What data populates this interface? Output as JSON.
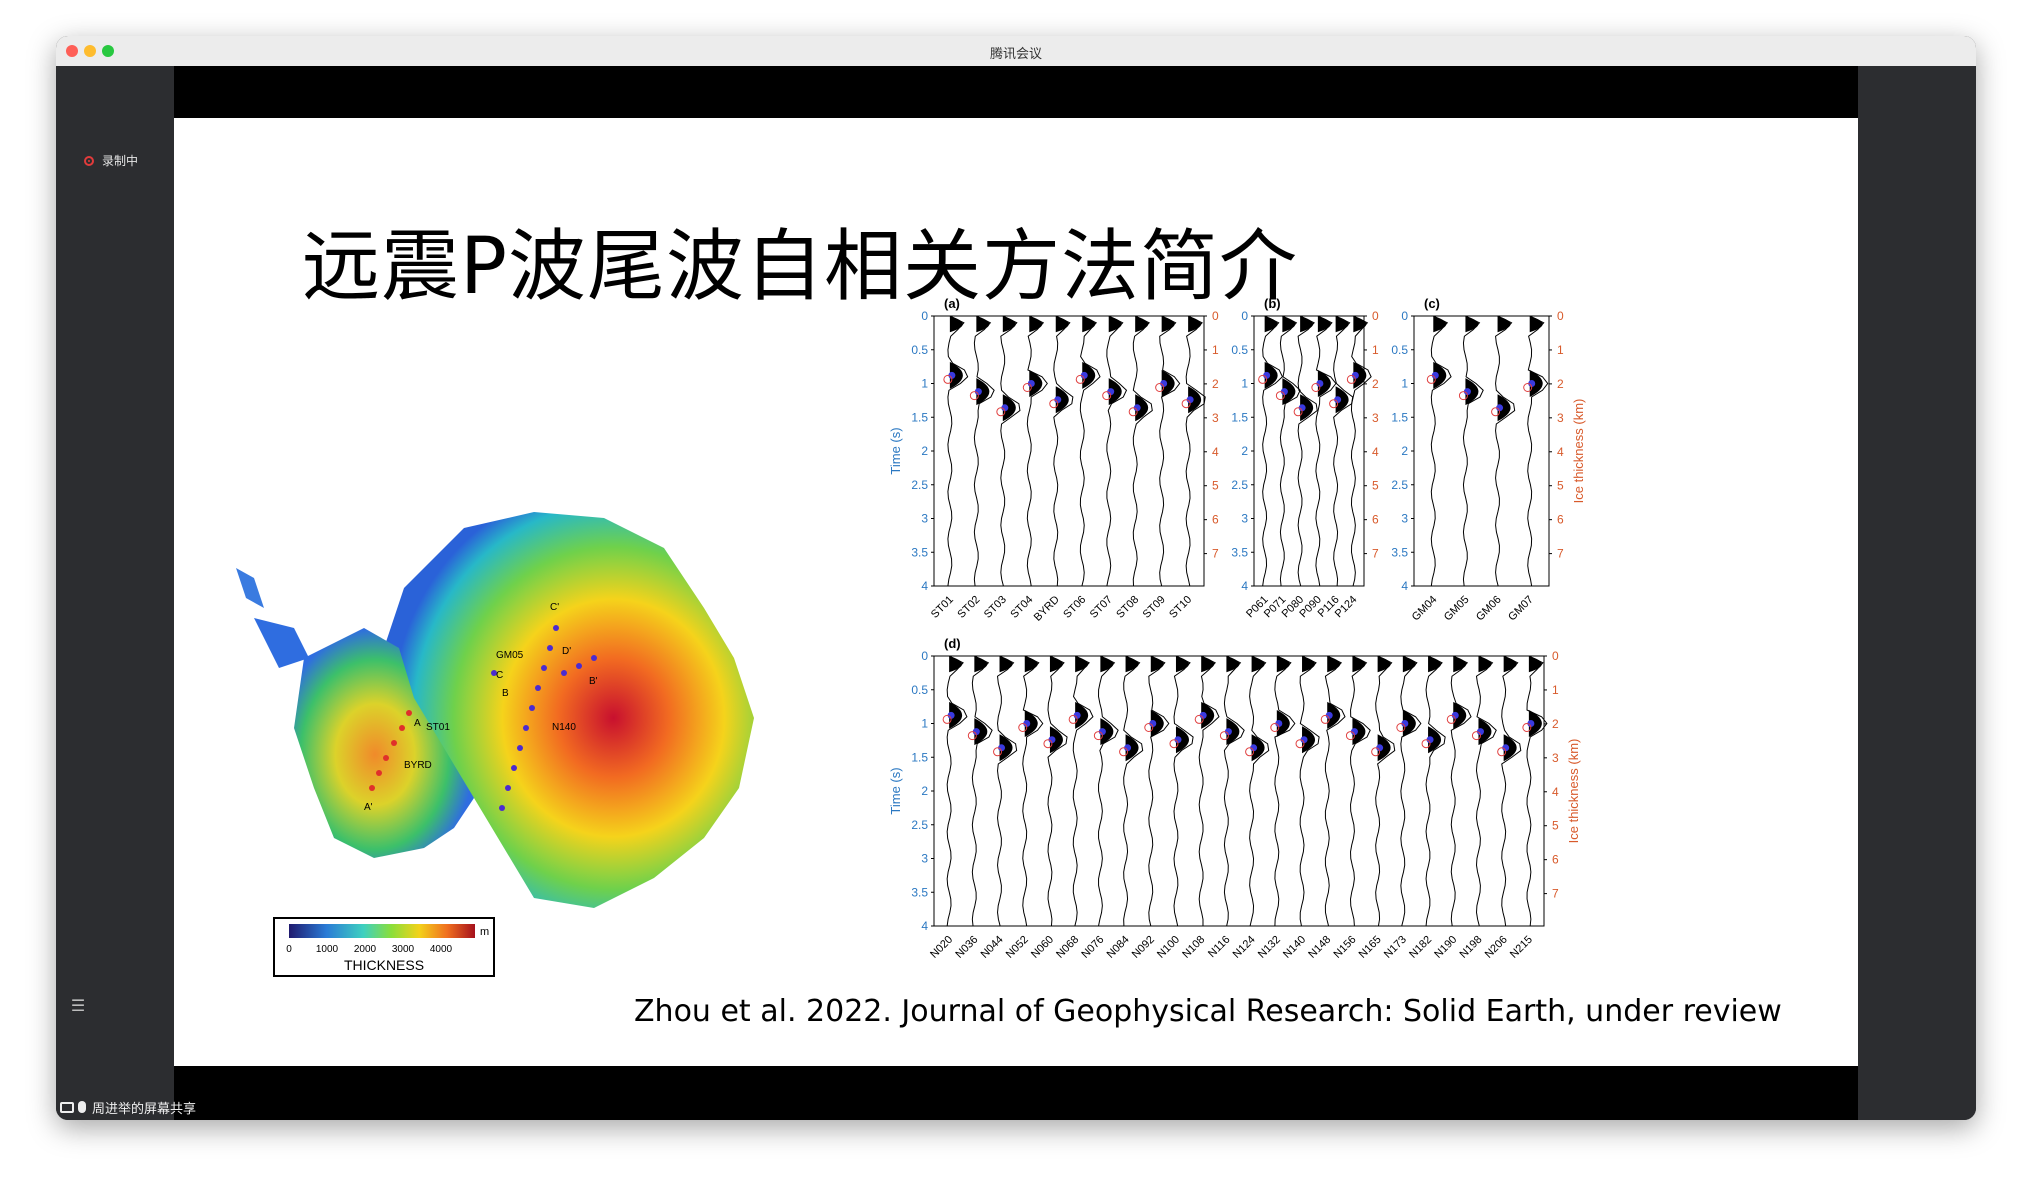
{
  "window": {
    "title": "腾讯会议"
  },
  "sidebar": {
    "recording_label": "录制中"
  },
  "share_bar": {
    "label": "周进举的屏幕共享"
  },
  "slide": {
    "title": "远震P波尾波自相关方法简介",
    "citation": "Zhou et al. 2022. Journal of Geophysical Research: Solid Earth, under review",
    "map": {
      "colorbar_ticks": [
        "0",
        "1000",
        "2000",
        "3000",
        "4000"
      ],
      "colorbar_unit": "m",
      "colorbar_label": "THICKNESS",
      "labels": [
        "C'",
        "GM05",
        "D'",
        "C",
        "B'",
        "B",
        "A",
        "ST01",
        "N140",
        "BYRD",
        "A'"
      ]
    },
    "figure": {
      "panels": {
        "a": {
          "label": "(a)",
          "stations": [
            "ST01",
            "ST02",
            "ST03",
            "ST04",
            "BYRD",
            "ST06",
            "ST07",
            "ST08",
            "ST09",
            "ST10"
          ]
        },
        "b": {
          "label": "(b)",
          "stations": [
            "P061",
            "P071",
            "P080",
            "P090",
            "P116",
            "P124"
          ]
        },
        "c": {
          "label": "(c)",
          "stations": [
            "GM04",
            "GM05",
            "GM06",
            "GM07"
          ]
        },
        "d": {
          "label": "(d)",
          "stations": [
            "N020",
            "N036",
            "N044",
            "N052",
            "N060",
            "N068",
            "N076",
            "N084",
            "N092",
            "N100",
            "N108",
            "N116",
            "N124",
            "N132",
            "N140",
            "N148",
            "N156",
            "N165",
            "N173",
            "N182",
            "N190",
            "N198",
            "N206",
            "N215"
          ]
        }
      },
      "time_axis": {
        "label": "Time (s)",
        "ticks": [
          "0",
          "0.5",
          "1",
          "1.5",
          "2",
          "2.5",
          "3",
          "3.5",
          "4"
        ]
      },
      "ice_axis": {
        "label": "Ice thickness (km)",
        "ticks": [
          "0",
          "1",
          "2",
          "3",
          "4",
          "5",
          "6",
          "7"
        ]
      },
      "colors": {
        "time_axis": "#2b78c2",
        "ice_axis": "#d85a2b"
      }
    }
  }
}
